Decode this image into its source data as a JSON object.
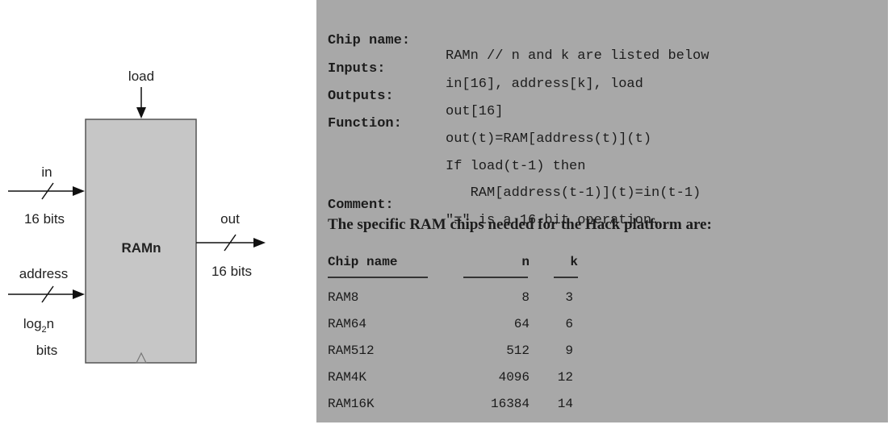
{
  "diagram": {
    "chip_label": "RAMn",
    "load_label": "load",
    "in_label": "in",
    "in_width": "16  bits",
    "address_label": "address",
    "address_width_prefix": "log",
    "address_width_sub": "2",
    "address_width_suffix": "n",
    "address_width_line2": "bits",
    "out_label": "out",
    "out_width": "16  bits"
  },
  "spec": {
    "rows": [
      {
        "key": "Chip name:",
        "value": "RAMn // n and k are listed below"
      },
      {
        "key": "Inputs:",
        "value": "in[16], address[k], load"
      },
      {
        "key": "Outputs:",
        "value": "out[16]"
      },
      {
        "key": "Function:",
        "value": "out(t)=RAM[address(t)](t)"
      },
      {
        "key": "",
        "value": "If load(t-1) then"
      },
      {
        "key": "",
        "value": "   RAM[address(t-1)](t)=in(t-1)"
      },
      {
        "key": "Comment:",
        "value": "\"=\" is a 16-bit operation."
      }
    ],
    "heading": "The specific RAM chips needed for the Hack platform are:"
  },
  "chips_table": {
    "headers": [
      "Chip name",
      "n",
      "k"
    ],
    "rows": [
      [
        "RAM8",
        "8",
        "3"
      ],
      [
        "RAM64",
        "64",
        "6"
      ],
      [
        "RAM512",
        "512",
        "9"
      ],
      [
        "RAM4K",
        "4096",
        "12"
      ],
      [
        "RAM16K",
        "16384",
        "14"
      ]
    ]
  }
}
